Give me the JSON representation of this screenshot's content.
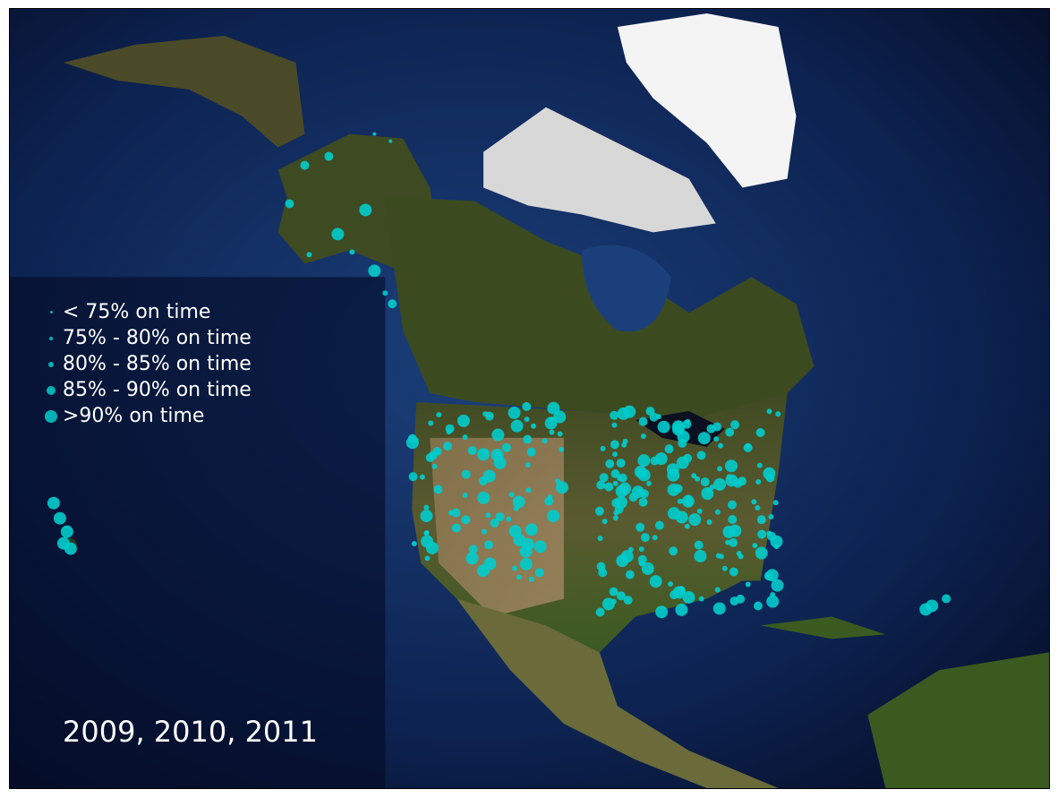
{
  "map": {
    "projection": "satellite basemap of North America",
    "marker_color": "#00cccc",
    "ocean_color": "#0a1a40",
    "land_color": "#4a5a2a",
    "ice_color": "#f2f2f2"
  },
  "legend": {
    "items": [
      {
        "label": "< 75% on time",
        "bin": 0
      },
      {
        "label": "75% - 80% on time",
        "bin": 1
      },
      {
        "label": "80% - 85% on time",
        "bin": 2
      },
      {
        "label": "85% - 90% on time",
        "bin": 3
      },
      {
        "label": ">90% on time",
        "bin": 4
      }
    ]
  },
  "years_label": "2009, 2010, 2011"
}
